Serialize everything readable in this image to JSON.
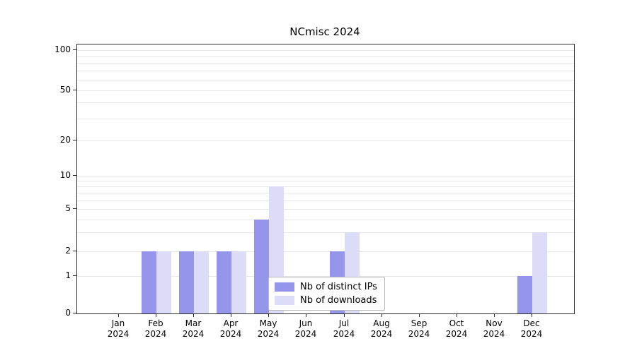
{
  "chart_data": {
    "type": "bar",
    "title": "NCmisc 2024",
    "categories": [
      "Jan",
      "Feb",
      "Mar",
      "Apr",
      "May",
      "Jun",
      "Jul",
      "Aug",
      "Sep",
      "Oct",
      "Nov",
      "Dec"
    ],
    "year_label": "2024",
    "series": [
      {
        "name": "Nb of distinct IPs",
        "color": "#9595ec",
        "values": [
          0,
          2,
          2,
          2,
          4,
          0,
          2,
          0,
          0,
          0,
          0,
          1
        ]
      },
      {
        "name": "Nb of downloads",
        "color": "#dcdcf8",
        "values": [
          0,
          2,
          2,
          2,
          8,
          0,
          3,
          0,
          0,
          0,
          0,
          3
        ]
      }
    ],
    "y_ticks": [
      0,
      1,
      2,
      5,
      10,
      20,
      50,
      100
    ],
    "y_scale": "symlog",
    "ylim": [
      0,
      100
    ],
    "grid": true,
    "legend_position": "bottom-center"
  }
}
